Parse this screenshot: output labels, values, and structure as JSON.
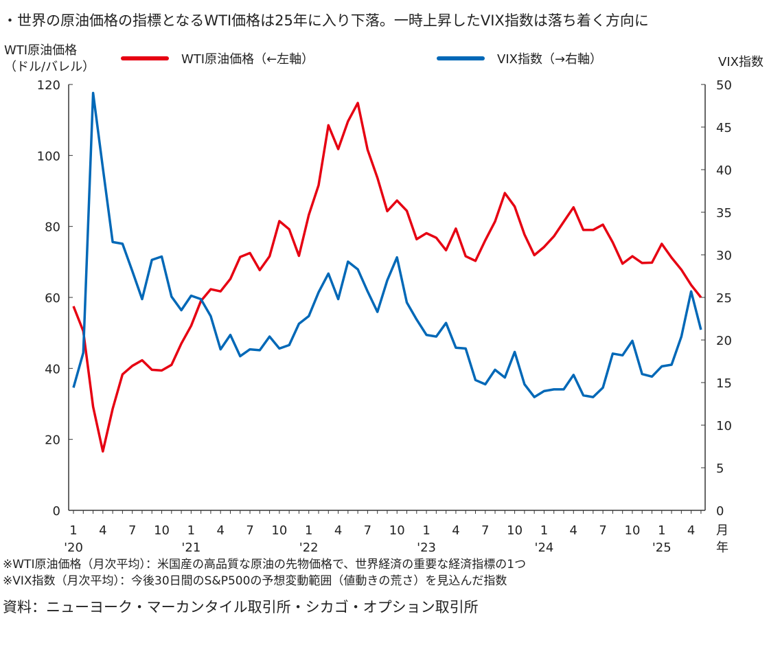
{
  "chart_data": {
    "type": "line",
    "title": "・世界の原油価格の指標となるWTI価格は25年に入り下落。一時上昇したVIX指数は落ち着く方向に",
    "ylabel_left": [
      "WTI原油価格",
      "（ドル/バレル）"
    ],
    "ylabel_right": "VIX指数",
    "ylim_left": [
      0,
      120
    ],
    "yticks_left": [
      0,
      20,
      40,
      60,
      80,
      100,
      120
    ],
    "ylim_right": [
      0,
      50
    ],
    "yticks_right": [
      0,
      5,
      10,
      15,
      20,
      25,
      30,
      35,
      40,
      45,
      50
    ],
    "xtick_months": [
      "1",
      "4",
      "7",
      "10"
    ],
    "xtick_years": [
      "'20",
      "'21",
      "'22",
      "'23",
      "'24",
      "'25"
    ],
    "x_unit_month": "月",
    "x_unit_year": "年",
    "x_start": "2020-01",
    "x_end": "2025-05",
    "legend_position": "top",
    "grid": false,
    "series": [
      {
        "name": "WTI原油価格（←左軸）",
        "axis": "left",
        "color": "#e60012",
        "values": [
          57.5,
          50.5,
          29.2,
          16.6,
          28.6,
          38.3,
          40.7,
          42.3,
          39.6,
          39.4,
          41.0,
          47.0,
          52.0,
          59.0,
          62.3,
          61.7,
          65.2,
          71.4,
          72.5,
          67.7,
          71.6,
          81.5,
          79.2,
          71.7,
          83.2,
          91.6,
          108.5,
          101.8,
          109.6,
          114.8,
          101.6,
          93.7,
          84.3,
          87.3,
          84.4,
          76.4,
          78.1,
          76.8,
          73.3,
          79.4,
          71.6,
          70.3,
          76.1,
          81.4,
          89.4,
          85.6,
          77.7,
          71.9,
          74.2,
          77.2,
          81.3,
          85.4,
          79.0,
          79.0,
          80.5,
          75.5,
          69.5,
          71.6,
          69.7,
          69.8,
          75.1,
          71.2,
          67.8,
          63.5,
          60.0
        ]
      },
      {
        "name": "VIX指数（→右軸）",
        "axis": "right",
        "color": "#0068b7",
        "values": [
          14.4,
          18.5,
          49.0,
          40.2,
          31.5,
          31.3,
          28.1,
          24.8,
          29.4,
          29.8,
          25.1,
          23.5,
          25.2,
          24.8,
          22.8,
          18.9,
          20.6,
          18.1,
          18.9,
          18.8,
          20.4,
          19.0,
          19.4,
          21.9,
          22.8,
          25.6,
          27.8,
          24.8,
          29.2,
          28.3,
          25.7,
          23.3,
          27.0,
          29.7,
          24.4,
          22.4,
          20.6,
          20.4,
          22.0,
          19.1,
          19.0,
          15.3,
          14.8,
          16.5,
          15.6,
          18.6,
          14.8,
          13.3,
          14.0,
          14.2,
          14.2,
          15.9,
          13.5,
          13.3,
          14.4,
          18.4,
          18.2,
          19.9,
          16.0,
          15.7,
          16.9,
          17.1,
          20.4,
          25.7,
          21.2
        ]
      }
    ]
  },
  "notes": [
    "※WTI原油価格（月次平均）：米国産の高品質な原油の先物価格で、世界経済の重要な経済指標の1つ",
    "※VIX指数（月次平均）：今後30日間のS&P500の予想変動範囲（値動きの荒さ）を見込んだ指数"
  ],
  "source": "資料：ニューヨーク・マーカンタイル取引所・シカゴ・オプション取引所"
}
